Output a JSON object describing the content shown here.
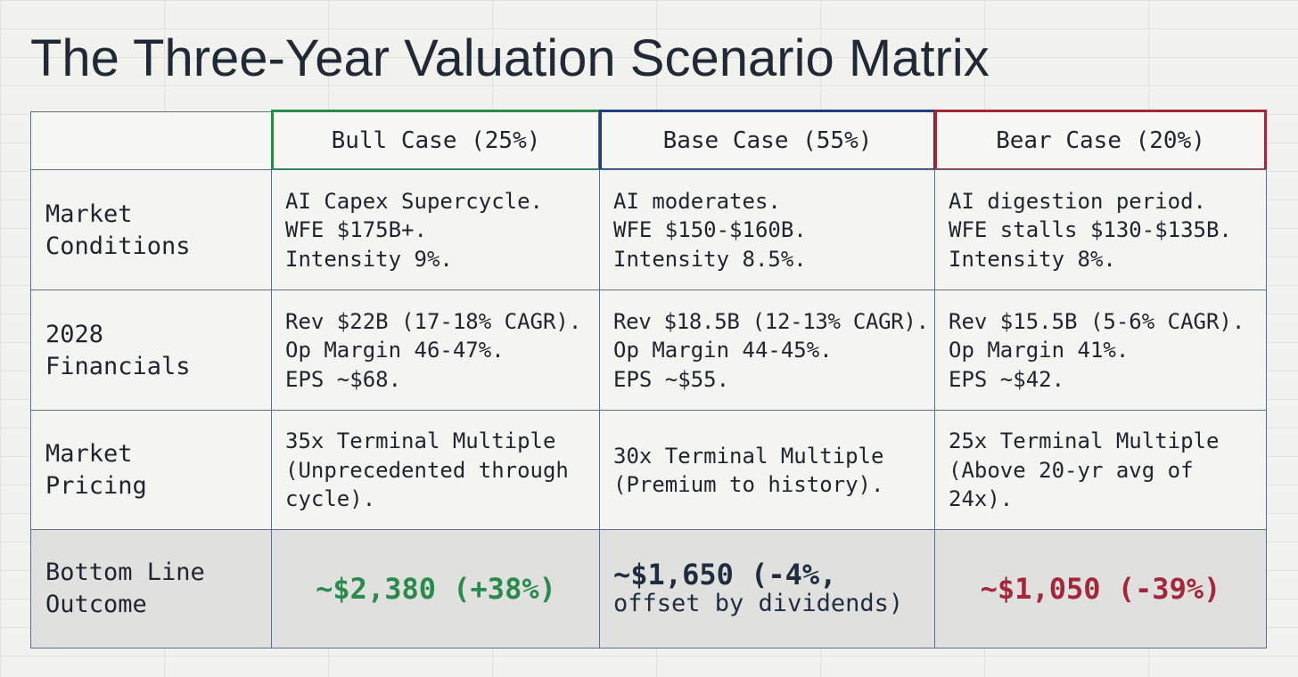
{
  "title": "The Three-Year Valuation Scenario Matrix",
  "colors": {
    "bull": "#2a8a4c",
    "base": "#1e3f7c",
    "bear": "#a5253a",
    "grid_border": "#5d6f86",
    "outcome_row_bg": "#e0e0de"
  },
  "headers": {
    "bull": "Bull Case (25%)",
    "base": "Base Case (55%)",
    "bear": "Bear Case (20%)"
  },
  "rows": {
    "market_conditions": {
      "label": [
        "Market",
        "Conditions"
      ],
      "bull": [
        "AI Capex Supercycle.",
        "WFE $175B+.",
        "Intensity 9%."
      ],
      "base": [
        "AI moderates.",
        "WFE $150-$160B.",
        "Intensity 8.5%."
      ],
      "bear": [
        "AI digestion period.",
        "WFE stalls $130-$135B.",
        "Intensity 8%."
      ]
    },
    "financials_2028": {
      "label": [
        "2028",
        "Financials"
      ],
      "bull": [
        "Rev $22B (17-18% CAGR).",
        "Op Margin 46-47%.",
        "EPS ~$68."
      ],
      "base": [
        "Rev $18.5B (12-13% CAGR).",
        "Op Margin 44-45%.",
        "EPS ~$55."
      ],
      "bear": [
        "Rev $15.5B (5-6% CAGR).",
        "Op Margin 41%.",
        "EPS ~$42."
      ]
    },
    "market_pricing": {
      "label": [
        "Market",
        "Pricing"
      ],
      "bull": [
        "35x Terminal Multiple",
        "(Unprecedented through",
        "cycle)."
      ],
      "base": [
        "30x Terminal Multiple",
        "(Premium to history)."
      ],
      "bear": [
        "25x Terminal Multiple",
        "(Above 20-yr avg of",
        "24x)."
      ]
    },
    "bottom_line": {
      "label": [
        "Bottom Line",
        "Outcome"
      ],
      "bull": "~$2,380 (+38%)",
      "base_main": "~$1,650 (-4%,",
      "base_sub": "offset by dividends)",
      "bear": "~$1,050 (-39%)"
    }
  }
}
